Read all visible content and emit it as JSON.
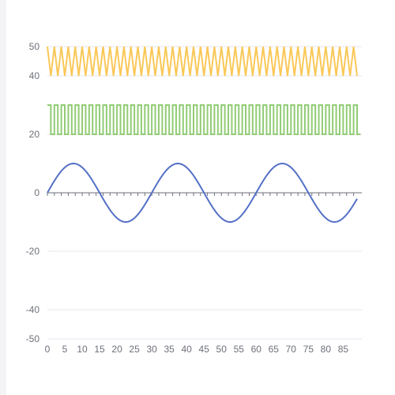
{
  "chart_data": {
    "type": "line",
    "xlim": [
      0,
      89
    ],
    "ylim": [
      -50,
      50
    ],
    "y_ticks": [
      50,
      40,
      20,
      0,
      -20,
      -40,
      -50
    ],
    "x_ticks": [
      0,
      5,
      10,
      15,
      20,
      25,
      30,
      35,
      40,
      45,
      50,
      55,
      60,
      65,
      70,
      75,
      80,
      85
    ],
    "grid": "horizontal",
    "series": [
      {
        "id": "sawtooth",
        "color": "#fac858",
        "x": [
          0,
          1,
          2,
          3,
          4,
          5,
          6,
          7,
          8,
          9,
          10,
          11,
          12,
          13,
          14,
          15,
          16,
          17,
          18,
          19,
          20,
          21,
          22,
          23,
          24,
          25,
          26,
          27,
          28,
          29,
          30,
          31,
          32,
          33,
          34,
          35,
          36,
          37,
          38,
          39,
          40,
          41,
          42,
          43,
          44,
          45,
          46,
          47,
          48,
          49,
          50,
          51,
          52,
          53,
          54,
          55,
          56,
          57,
          58,
          59,
          60,
          61,
          62,
          63,
          64,
          65,
          66,
          67,
          68,
          69,
          70,
          71,
          72,
          73,
          74,
          75,
          76,
          77,
          78,
          79,
          80,
          81,
          82,
          83,
          84,
          85,
          86,
          87,
          88,
          89
        ],
        "values": [
          50,
          40,
          50,
          40,
          50,
          40,
          50,
          40,
          50,
          40,
          50,
          40,
          50,
          40,
          50,
          40,
          50,
          40,
          50,
          40,
          50,
          40,
          50,
          40,
          50,
          40,
          50,
          40,
          50,
          40,
          50,
          40,
          50,
          40,
          50,
          40,
          50,
          40,
          50,
          40,
          50,
          40,
          50,
          40,
          50,
          40,
          50,
          40,
          50,
          40,
          50,
          40,
          50,
          40,
          50,
          40,
          50,
          40,
          50,
          40,
          50,
          40,
          50,
          40,
          50,
          40,
          50,
          40,
          50,
          40,
          50,
          40,
          50,
          40,
          50,
          40,
          50,
          40,
          50,
          40,
          50,
          40,
          50,
          40,
          50,
          40,
          50,
          40,
          50,
          40
        ]
      },
      {
        "id": "square-wave",
        "color": "#91cc75",
        "x": [
          0,
          1,
          2,
          3,
          4,
          5,
          6,
          7,
          8,
          9,
          10,
          11,
          12,
          13,
          14,
          15,
          16,
          17,
          18,
          19,
          20,
          21,
          22,
          23,
          24,
          25,
          26,
          27,
          28,
          29,
          30,
          31,
          32,
          33,
          34,
          35,
          36,
          37,
          38,
          39,
          40,
          41,
          42,
          43,
          44,
          45,
          46,
          47,
          48,
          49,
          50,
          51,
          52,
          53,
          54,
          55,
          56,
          57,
          58,
          59,
          60,
          61,
          62,
          63,
          64,
          65,
          66,
          67,
          68,
          69,
          70,
          71,
          72,
          73,
          74,
          75,
          76,
          77,
          78,
          79,
          80,
          81,
          82,
          83,
          84,
          85,
          86,
          87,
          88,
          89
        ],
        "values": [
          30,
          20,
          30,
          20,
          30,
          20,
          30,
          20,
          30,
          20,
          30,
          20,
          30,
          20,
          30,
          20,
          30,
          20,
          30,
          20,
          30,
          20,
          30,
          20,
          30,
          20,
          30,
          20,
          30,
          20,
          30,
          20,
          30,
          20,
          30,
          20,
          30,
          20,
          30,
          20,
          30,
          20,
          30,
          20,
          30,
          20,
          30,
          20,
          30,
          20,
          30,
          20,
          30,
          20,
          30,
          20,
          30,
          20,
          30,
          20,
          30,
          20,
          30,
          20,
          30,
          20,
          30,
          20,
          30,
          20,
          30,
          20,
          30,
          20,
          30,
          20,
          30,
          20,
          30,
          20,
          30,
          20,
          30,
          20,
          30,
          20,
          30,
          20,
          30,
          20
        ],
        "step": true
      },
      {
        "id": "sine-wave",
        "color": "#5470c6",
        "amplitude": 10,
        "period": 30,
        "x": [
          0,
          1,
          2,
          3,
          4,
          5,
          6,
          7,
          8,
          9,
          10,
          11,
          12,
          13,
          14,
          15,
          16,
          17,
          18,
          19,
          20,
          21,
          22,
          23,
          24,
          25,
          26,
          27,
          28,
          29,
          30,
          31,
          32,
          33,
          34,
          35,
          36,
          37,
          38,
          39,
          40,
          41,
          42,
          43,
          44,
          45,
          46,
          47,
          48,
          49,
          50,
          51,
          52,
          53,
          54,
          55,
          56,
          57,
          58,
          59,
          60,
          61,
          62,
          63,
          64,
          65,
          66,
          67,
          68,
          69,
          70,
          71,
          72,
          73,
          74,
          75,
          76,
          77,
          78,
          79,
          80,
          81,
          82,
          83,
          84,
          85,
          86,
          87,
          88,
          89
        ],
        "values": [
          0,
          2.1,
          4.1,
          5.9,
          7.4,
          8.7,
          9.5,
          9.9,
          9.9,
          9.5,
          8.7,
          7.4,
          5.9,
          4.1,
          2.1,
          0,
          -2.1,
          -4.1,
          -5.9,
          -7.4,
          -8.7,
          -9.5,
          -9.9,
          -9.9,
          -9.5,
          -8.7,
          -7.4,
          -5.9,
          -4.1,
          -2.1,
          0,
          2.1,
          4.1,
          5.9,
          7.4,
          8.7,
          9.5,
          9.9,
          9.9,
          9.5,
          8.7,
          7.4,
          5.9,
          4.1,
          2.1,
          0,
          -2.1,
          -4.1,
          -5.9,
          -7.4,
          -8.7,
          -9.5,
          -9.9,
          -9.9,
          -9.5,
          -8.7,
          -7.4,
          -5.9,
          -4.1,
          -2.1,
          0,
          2.1,
          4.1,
          5.9,
          7.4,
          8.7,
          9.5,
          9.9,
          9.9,
          9.5,
          8.7,
          7.4,
          5.9,
          4.1,
          2.1,
          0,
          -2.1,
          -4.1,
          -5.9,
          -7.4,
          -8.7,
          -9.5,
          -9.9,
          -9.9,
          -9.5,
          -8.7,
          -7.4,
          -5.9,
          -4.1,
          -2.1
        ]
      }
    ]
  }
}
